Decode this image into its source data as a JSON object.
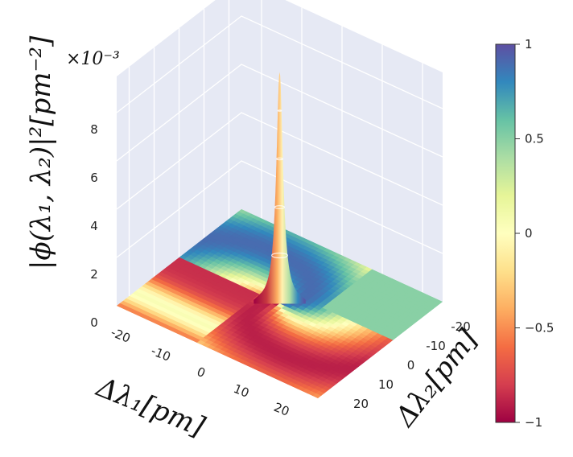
{
  "chart_data": {
    "type": "surface",
    "z_label": "|ϕ(λ₁, λ₂)|²[pm⁻²]",
    "z_exponent": "×10⁻³",
    "x_label": "Δλ₁[pm]",
    "y_label": "Δλ₂[pm]",
    "x_ticks": [
      "-20",
      "-10",
      "0",
      "10",
      "20"
    ],
    "y_ticks": [
      "20",
      "10",
      "0",
      "-10",
      "-20"
    ],
    "z_ticks": [
      "0",
      "2",
      "4",
      "6",
      "8"
    ],
    "x_range": [
      -25,
      25
    ],
    "y_range": [
      -25,
      25
    ],
    "z_range": [
      0,
      9.5
    ],
    "peak": {
      "x": 0,
      "y": 0,
      "z": 9.6
    },
    "colorbar": {
      "min": -1,
      "max": 1,
      "ticks": [
        "1",
        "0.5",
        "0",
        "−0.5",
        "−1"
      ],
      "colorscale": "Spectral"
    }
  },
  "colors": {
    "pane": "#e6e9f4",
    "grid": "#ffffff",
    "neg": "#9e0142",
    "mid": "#ffffbf",
    "pos": "#5e4fa2"
  }
}
